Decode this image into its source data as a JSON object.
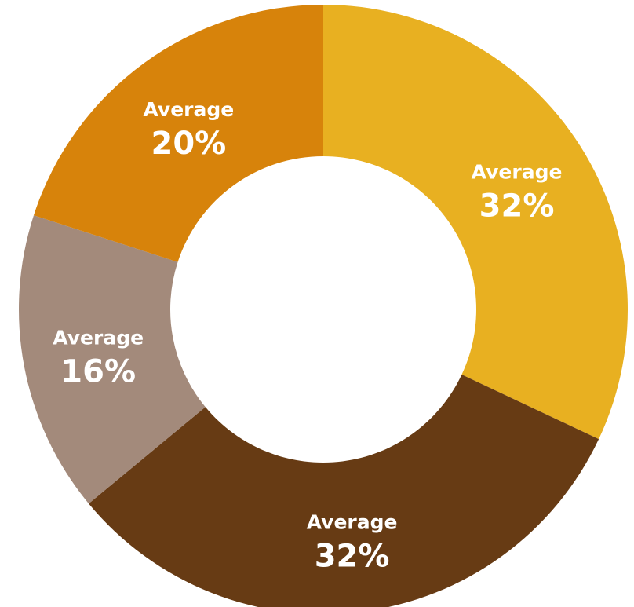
{
  "chart_data": {
    "type": "pie",
    "donut": true,
    "title": "",
    "slices": [
      {
        "label": "Average",
        "value": 32,
        "value_text": "32%",
        "color": "#E8B021"
      },
      {
        "label": "Average",
        "value": 32,
        "value_text": "32%",
        "color": "#673B14"
      },
      {
        "label": "Average",
        "value": 16,
        "value_text": "16%",
        "color": "#A38A7B"
      },
      {
        "label": "Average",
        "value": 20,
        "value_text": "20%",
        "color": "#D7830B"
      }
    ],
    "start": "12 o'clock",
    "direction": "clockwise",
    "legend": "none",
    "label_color": "#FFFFFF"
  }
}
